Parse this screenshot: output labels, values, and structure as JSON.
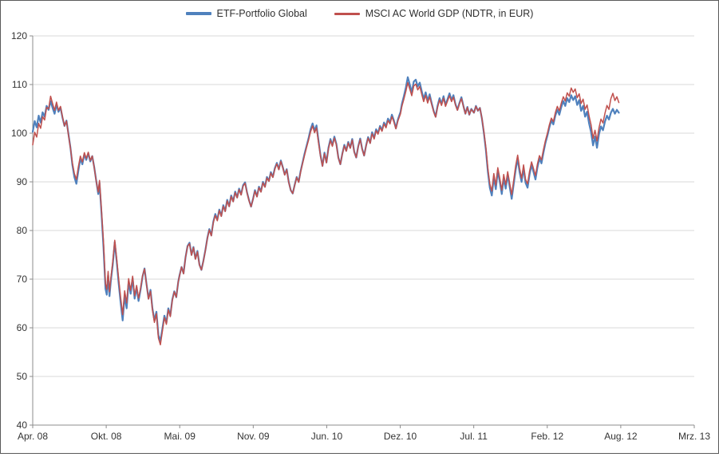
{
  "chart_data": {
    "type": "line",
    "title": "",
    "x_tick_labels": [
      "Apr. 08",
      "Okt. 08",
      "Mai. 09",
      "Nov. 09",
      "Jun. 10",
      "Dez. 10",
      "Jul. 11",
      "Feb. 12",
      "Aug. 12",
      "Mrz. 13"
    ],
    "ylim": [
      40,
      120
    ],
    "y_tick_step": 10,
    "grid": "horizontal",
    "legend_position": "top-center",
    "colors": {
      "grid": "#d9d9d9",
      "axis": "#8c8c8c",
      "tick_text": "#333333"
    },
    "series": [
      {
        "name": "ETF-Portfolio Global",
        "color": "#4F81BD",
        "width": 2.2
      },
      {
        "name": "MSCI AC World GDP (NDTR, in EUR)",
        "color": "#C0504D",
        "width": 1.5
      }
    ],
    "points_note": "each point = [x fraction of axis (Apr.08=0, Mrz.13=1), ETF value, MSCI value]",
    "points": [
      [
        0.0,
        100.3,
        97.6
      ],
      [
        0.003,
        102.5,
        100.2
      ],
      [
        0.006,
        101.2,
        99.2
      ],
      [
        0.009,
        103.6,
        102.0
      ],
      [
        0.012,
        102.2,
        101.0
      ],
      [
        0.015,
        104.3,
        103.4
      ],
      [
        0.018,
        103.4,
        102.7
      ],
      [
        0.021,
        105.6,
        105.3
      ],
      [
        0.024,
        104.8,
        105.0
      ],
      [
        0.027,
        106.6,
        107.6
      ],
      [
        0.03,
        105.2,
        106.1
      ],
      [
        0.033,
        104.0,
        104.7
      ],
      [
        0.036,
        105.9,
        106.4
      ],
      [
        0.039,
        104.4,
        104.7
      ],
      [
        0.042,
        105.3,
        105.5
      ],
      [
        0.045,
        103.2,
        103.4
      ],
      [
        0.048,
        101.5,
        101.5
      ],
      [
        0.051,
        102.6,
        102.5
      ],
      [
        0.054,
        99.8,
        99.6
      ],
      [
        0.057,
        97.0,
        96.9
      ],
      [
        0.06,
        93.5,
        93.9
      ],
      [
        0.063,
        91.0,
        91.7
      ],
      [
        0.066,
        89.6,
        90.5
      ],
      [
        0.069,
        92.3,
        93.1
      ],
      [
        0.072,
        94.8,
        95.3
      ],
      [
        0.075,
        93.6,
        94.1
      ],
      [
        0.078,
        95.7,
        96.0
      ],
      [
        0.081,
        94.5,
        94.8
      ],
      [
        0.084,
        95.9,
        96.1
      ],
      [
        0.087,
        94.2,
        94.4
      ],
      [
        0.09,
        95.3,
        95.3
      ],
      [
        0.093,
        93.0,
        92.9
      ],
      [
        0.096,
        90.2,
        90.1
      ],
      [
        0.099,
        87.5,
        87.9
      ],
      [
        0.101,
        89.8,
        90.3
      ],
      [
        0.104,
        83.5,
        84.1
      ],
      [
        0.107,
        76.5,
        77.6
      ],
      [
        0.11,
        68.0,
        69.1
      ],
      [
        0.112,
        66.8,
        67.9
      ],
      [
        0.114,
        70.8,
        71.6
      ],
      [
        0.116,
        66.5,
        67.4
      ],
      [
        0.118,
        69.5,
        70.1
      ],
      [
        0.121,
        73.0,
        73.6
      ],
      [
        0.124,
        77.6,
        78.0
      ],
      [
        0.127,
        73.5,
        74.1
      ],
      [
        0.13,
        69.0,
        69.9
      ],
      [
        0.133,
        65.0,
        66.1
      ],
      [
        0.136,
        61.5,
        62.7
      ],
      [
        0.139,
        66.5,
        67.6
      ],
      [
        0.142,
        64.0,
        65.1
      ],
      [
        0.145,
        69.5,
        70.1
      ],
      [
        0.148,
        67.0,
        67.7
      ],
      [
        0.151,
        70.2,
        70.6
      ],
      [
        0.154,
        66.0,
        66.6
      ],
      [
        0.157,
        68.3,
        68.7
      ],
      [
        0.16,
        65.5,
        66.1
      ],
      [
        0.163,
        67.8,
        68.1
      ],
      [
        0.166,
        70.5,
        70.7
      ],
      [
        0.169,
        72.2,
        72.1
      ],
      [
        0.172,
        69.0,
        68.9
      ],
      [
        0.175,
        66.0,
        65.9
      ],
      [
        0.178,
        67.8,
        67.5
      ],
      [
        0.181,
        64.0,
        63.7
      ],
      [
        0.184,
        61.5,
        61.1
      ],
      [
        0.187,
        63.3,
        62.9
      ],
      [
        0.19,
        58.5,
        57.9
      ],
      [
        0.193,
        57.3,
        56.5
      ],
      [
        0.196,
        59.8,
        59.3
      ],
      [
        0.199,
        62.5,
        62.1
      ],
      [
        0.202,
        61.0,
        60.7
      ],
      [
        0.205,
        64.0,
        63.7
      ],
      [
        0.208,
        62.5,
        62.3
      ],
      [
        0.211,
        65.8,
        65.6
      ],
      [
        0.214,
        67.5,
        67.4
      ],
      [
        0.217,
        66.3,
        66.3
      ],
      [
        0.22,
        69.5,
        69.5
      ],
      [
        0.222,
        70.8,
        70.7
      ],
      [
        0.225,
        72.5,
        72.5
      ],
      [
        0.228,
        71.2,
        71.1
      ],
      [
        0.231,
        74.5,
        74.5
      ],
      [
        0.234,
        76.8,
        76.7
      ],
      [
        0.237,
        77.5,
        77.3
      ],
      [
        0.24,
        75.0,
        74.9
      ],
      [
        0.243,
        76.6,
        76.5
      ],
      [
        0.246,
        74.2,
        74.1
      ],
      [
        0.249,
        75.8,
        75.6
      ],
      [
        0.252,
        73.0,
        72.9
      ],
      [
        0.255,
        71.9,
        71.9
      ],
      [
        0.258,
        73.8,
        73.7
      ],
      [
        0.261,
        76.0,
        75.9
      ],
      [
        0.264,
        78.5,
        78.4
      ],
      [
        0.267,
        80.3,
        80.1
      ],
      [
        0.27,
        79.0,
        78.9
      ],
      [
        0.273,
        81.8,
        81.6
      ],
      [
        0.276,
        83.4,
        83.1
      ],
      [
        0.279,
        82.2,
        82.0
      ],
      [
        0.282,
        84.3,
        84.1
      ],
      [
        0.285,
        83.0,
        82.9
      ],
      [
        0.288,
        85.2,
        85.0
      ],
      [
        0.291,
        84.0,
        83.9
      ],
      [
        0.294,
        86.3,
        86.1
      ],
      [
        0.297,
        85.0,
        84.9
      ],
      [
        0.3,
        87.2,
        87.0
      ],
      [
        0.303,
        86.0,
        85.9
      ],
      [
        0.306,
        88.0,
        87.8
      ],
      [
        0.309,
        86.8,
        86.7
      ],
      [
        0.312,
        88.6,
        88.4
      ],
      [
        0.315,
        87.4,
        87.3
      ],
      [
        0.318,
        89.3,
        89.1
      ],
      [
        0.321,
        89.9,
        89.7
      ],
      [
        0.324,
        87.8,
        87.7
      ],
      [
        0.327,
        86.2,
        86.1
      ],
      [
        0.33,
        84.9,
        84.9
      ],
      [
        0.333,
        86.5,
        86.4
      ],
      [
        0.336,
        88.3,
        88.1
      ],
      [
        0.339,
        87.0,
        86.9
      ],
      [
        0.342,
        89.0,
        88.8
      ],
      [
        0.345,
        88.0,
        87.9
      ],
      [
        0.348,
        90.0,
        89.8
      ],
      [
        0.351,
        89.0,
        88.9
      ],
      [
        0.354,
        91.0,
        90.8
      ],
      [
        0.357,
        90.2,
        90.1
      ],
      [
        0.36,
        92.0,
        91.8
      ],
      [
        0.363,
        91.0,
        90.9
      ],
      [
        0.366,
        92.8,
        92.6
      ],
      [
        0.369,
        93.9,
        93.7
      ],
      [
        0.372,
        92.6,
        92.5
      ],
      [
        0.375,
        94.4,
        94.2
      ],
      [
        0.378,
        93.0,
        92.9
      ],
      [
        0.381,
        91.5,
        91.4
      ],
      [
        0.384,
        92.6,
        92.5
      ],
      [
        0.387,
        90.0,
        89.9
      ],
      [
        0.39,
        88.3,
        88.3
      ],
      [
        0.393,
        87.6,
        87.6
      ],
      [
        0.396,
        89.4,
        89.3
      ],
      [
        0.399,
        91.0,
        90.9
      ],
      [
        0.402,
        90.0,
        89.9
      ],
      [
        0.405,
        92.2,
        92.0
      ],
      [
        0.408,
        94.0,
        93.8
      ],
      [
        0.411,
        95.8,
        95.5
      ],
      [
        0.414,
        97.4,
        97.1
      ],
      [
        0.417,
        99.0,
        98.6
      ],
      [
        0.42,
        100.8,
        100.3
      ],
      [
        0.423,
        102.0,
        101.5
      ],
      [
        0.426,
        100.5,
        100.1
      ],
      [
        0.429,
        101.6,
        101.1
      ],
      [
        0.432,
        98.5,
        98.1
      ],
      [
        0.435,
        95.5,
        95.3
      ],
      [
        0.438,
        93.3,
        93.2
      ],
      [
        0.441,
        96.0,
        95.8
      ],
      [
        0.444,
        94.0,
        93.9
      ],
      [
        0.447,
        97.0,
        96.8
      ],
      [
        0.45,
        98.8,
        98.5
      ],
      [
        0.453,
        97.5,
        97.3
      ],
      [
        0.456,
        99.3,
        99.0
      ],
      [
        0.459,
        97.8,
        97.6
      ],
      [
        0.462,
        95.0,
        94.9
      ],
      [
        0.465,
        93.6,
        93.6
      ],
      [
        0.468,
        95.8,
        95.7
      ],
      [
        0.471,
        97.6,
        97.4
      ],
      [
        0.474,
        96.4,
        96.3
      ],
      [
        0.477,
        98.2,
        98.0
      ],
      [
        0.48,
        97.0,
        96.9
      ],
      [
        0.483,
        98.8,
        98.6
      ],
      [
        0.486,
        96.2,
        96.1
      ],
      [
        0.489,
        95.0,
        95.0
      ],
      [
        0.492,
        97.3,
        97.2
      ],
      [
        0.495,
        98.9,
        98.7
      ],
      [
        0.498,
        96.8,
        96.7
      ],
      [
        0.501,
        95.4,
        95.4
      ],
      [
        0.504,
        97.5,
        97.4
      ],
      [
        0.507,
        99.2,
        99.0
      ],
      [
        0.51,
        98.0,
        97.9
      ],
      [
        0.513,
        100.2,
        99.9
      ],
      [
        0.516,
        99.0,
        98.8
      ],
      [
        0.519,
        100.8,
        100.5
      ],
      [
        0.522,
        100.0,
        99.8
      ],
      [
        0.525,
        101.5,
        101.2
      ],
      [
        0.528,
        100.6,
        100.4
      ],
      [
        0.531,
        102.2,
        101.9
      ],
      [
        0.534,
        101.4,
        101.1
      ],
      [
        0.537,
        103.0,
        102.6
      ],
      [
        0.54,
        102.2,
        101.9
      ],
      [
        0.543,
        103.8,
        103.4
      ],
      [
        0.546,
        102.6,
        102.3
      ],
      [
        0.549,
        101.0,
        100.9
      ],
      [
        0.552,
        102.8,
        102.5
      ],
      [
        0.556,
        104.4,
        104.0
      ],
      [
        0.558,
        106.0,
        105.5
      ],
      [
        0.561,
        107.6,
        107.0
      ],
      [
        0.564,
        109.4,
        108.6
      ],
      [
        0.567,
        111.5,
        110.4
      ],
      [
        0.57,
        110.0,
        109.1
      ],
      [
        0.573,
        108.4,
        107.7
      ],
      [
        0.576,
        110.6,
        109.7
      ],
      [
        0.579,
        111.0,
        110.1
      ],
      [
        0.582,
        109.6,
        108.9
      ],
      [
        0.585,
        110.4,
        109.6
      ],
      [
        0.588,
        108.6,
        108.0
      ],
      [
        0.591,
        107.0,
        106.5
      ],
      [
        0.594,
        108.4,
        107.8
      ],
      [
        0.597,
        106.6,
        106.2
      ],
      [
        0.6,
        108.0,
        107.5
      ],
      [
        0.603,
        106.2,
        105.9
      ],
      [
        0.606,
        104.6,
        104.4
      ],
      [
        0.609,
        103.4,
        103.3
      ],
      [
        0.612,
        105.6,
        105.3
      ],
      [
        0.615,
        107.2,
        106.8
      ],
      [
        0.618,
        106.0,
        105.7
      ],
      [
        0.621,
        107.6,
        107.2
      ],
      [
        0.624,
        105.8,
        105.5
      ],
      [
        0.627,
        107.0,
        106.6
      ],
      [
        0.63,
        108.2,
        107.7
      ],
      [
        0.633,
        106.8,
        106.5
      ],
      [
        0.636,
        107.8,
        107.4
      ],
      [
        0.639,
        106.0,
        105.8
      ],
      [
        0.642,
        104.8,
        104.7
      ],
      [
        0.645,
        106.2,
        106.0
      ],
      [
        0.648,
        107.4,
        107.1
      ],
      [
        0.651,
        105.6,
        105.5
      ],
      [
        0.654,
        104.0,
        104.0
      ],
      [
        0.657,
        105.4,
        105.3
      ],
      [
        0.66,
        103.8,
        103.8
      ],
      [
        0.663,
        105.0,
        104.9
      ],
      [
        0.667,
        104.2,
        104.2
      ],
      [
        0.67,
        105.6,
        105.5
      ],
      [
        0.673,
        104.6,
        104.6
      ],
      [
        0.676,
        105.2,
        105.2
      ],
      [
        0.679,
        103.0,
        103.1
      ],
      [
        0.682,
        100.0,
        100.3
      ],
      [
        0.685,
        96.5,
        97.0
      ],
      [
        0.688,
        92.0,
        92.7
      ],
      [
        0.691,
        88.8,
        89.6
      ],
      [
        0.694,
        87.2,
        88.1
      ],
      [
        0.697,
        91.0,
        91.7
      ],
      [
        0.7,
        88.5,
        89.3
      ],
      [
        0.703,
        92.3,
        92.9
      ],
      [
        0.706,
        90.0,
        90.7
      ],
      [
        0.709,
        87.5,
        88.3
      ],
      [
        0.712,
        90.8,
        91.5
      ],
      [
        0.715,
        88.6,
        89.4
      ],
      [
        0.718,
        91.5,
        92.1
      ],
      [
        0.721,
        89.0,
        89.7
      ],
      [
        0.724,
        86.5,
        87.4
      ],
      [
        0.727,
        89.5,
        90.3
      ],
      [
        0.73,
        92.5,
        93.3
      ],
      [
        0.733,
        94.8,
        95.5
      ],
      [
        0.736,
        92.0,
        92.8
      ],
      [
        0.739,
        90.0,
        90.7
      ],
      [
        0.742,
        92.8,
        93.5
      ],
      [
        0.745,
        89.8,
        90.5
      ],
      [
        0.748,
        88.8,
        89.6
      ],
      [
        0.751,
        91.5,
        92.2
      ],
      [
        0.754,
        93.5,
        94.1
      ],
      [
        0.757,
        92.0,
        92.7
      ],
      [
        0.76,
        90.5,
        91.3
      ],
      [
        0.763,
        93.0,
        93.7
      ],
      [
        0.766,
        94.8,
        95.4
      ],
      [
        0.769,
        93.8,
        94.5
      ],
      [
        0.772,
        96.0,
        96.6
      ],
      [
        0.775,
        98.0,
        98.5
      ],
      [
        0.778,
        99.5,
        100.0
      ],
      [
        0.781,
        101.2,
        101.7
      ],
      [
        0.784,
        102.6,
        103.1
      ],
      [
        0.787,
        101.8,
        102.4
      ],
      [
        0.79,
        103.6,
        104.2
      ],
      [
        0.793,
        104.8,
        105.5
      ],
      [
        0.796,
        103.8,
        104.6
      ],
      [
        0.799,
        105.4,
        106.2
      ],
      [
        0.802,
        106.6,
        107.5
      ],
      [
        0.805,
        105.6,
        106.6
      ],
      [
        0.808,
        107.2,
        108.3
      ],
      [
        0.811,
        106.4,
        107.6
      ],
      [
        0.814,
        107.8,
        109.3
      ],
      [
        0.817,
        106.8,
        108.4
      ],
      [
        0.82,
        107.6,
        109.1
      ],
      [
        0.823,
        105.8,
        107.3
      ],
      [
        0.826,
        106.8,
        108.1
      ],
      [
        0.829,
        104.6,
        106.1
      ],
      [
        0.832,
        105.6,
        107.0
      ],
      [
        0.835,
        103.4,
        104.9
      ],
      [
        0.838,
        104.4,
        105.8
      ],
      [
        0.841,
        102.0,
        103.5
      ],
      [
        0.844,
        100.2,
        101.7
      ],
      [
        0.847,
        97.5,
        98.9
      ],
      [
        0.85,
        99.3,
        100.6
      ],
      [
        0.853,
        97.0,
        98.4
      ],
      [
        0.856,
        99.8,
        101.1
      ],
      [
        0.859,
        101.4,
        102.9
      ],
      [
        0.862,
        100.6,
        102.1
      ],
      [
        0.865,
        102.4,
        104.1
      ],
      [
        0.868,
        103.6,
        105.7
      ],
      [
        0.871,
        102.8,
        104.9
      ],
      [
        0.874,
        104.2,
        107.1
      ],
      [
        0.877,
        105.0,
        108.2
      ],
      [
        0.88,
        104.0,
        106.7
      ],
      [
        0.883,
        104.8,
        107.5
      ],
      [
        0.886,
        104.2,
        106.3
      ]
    ]
  }
}
